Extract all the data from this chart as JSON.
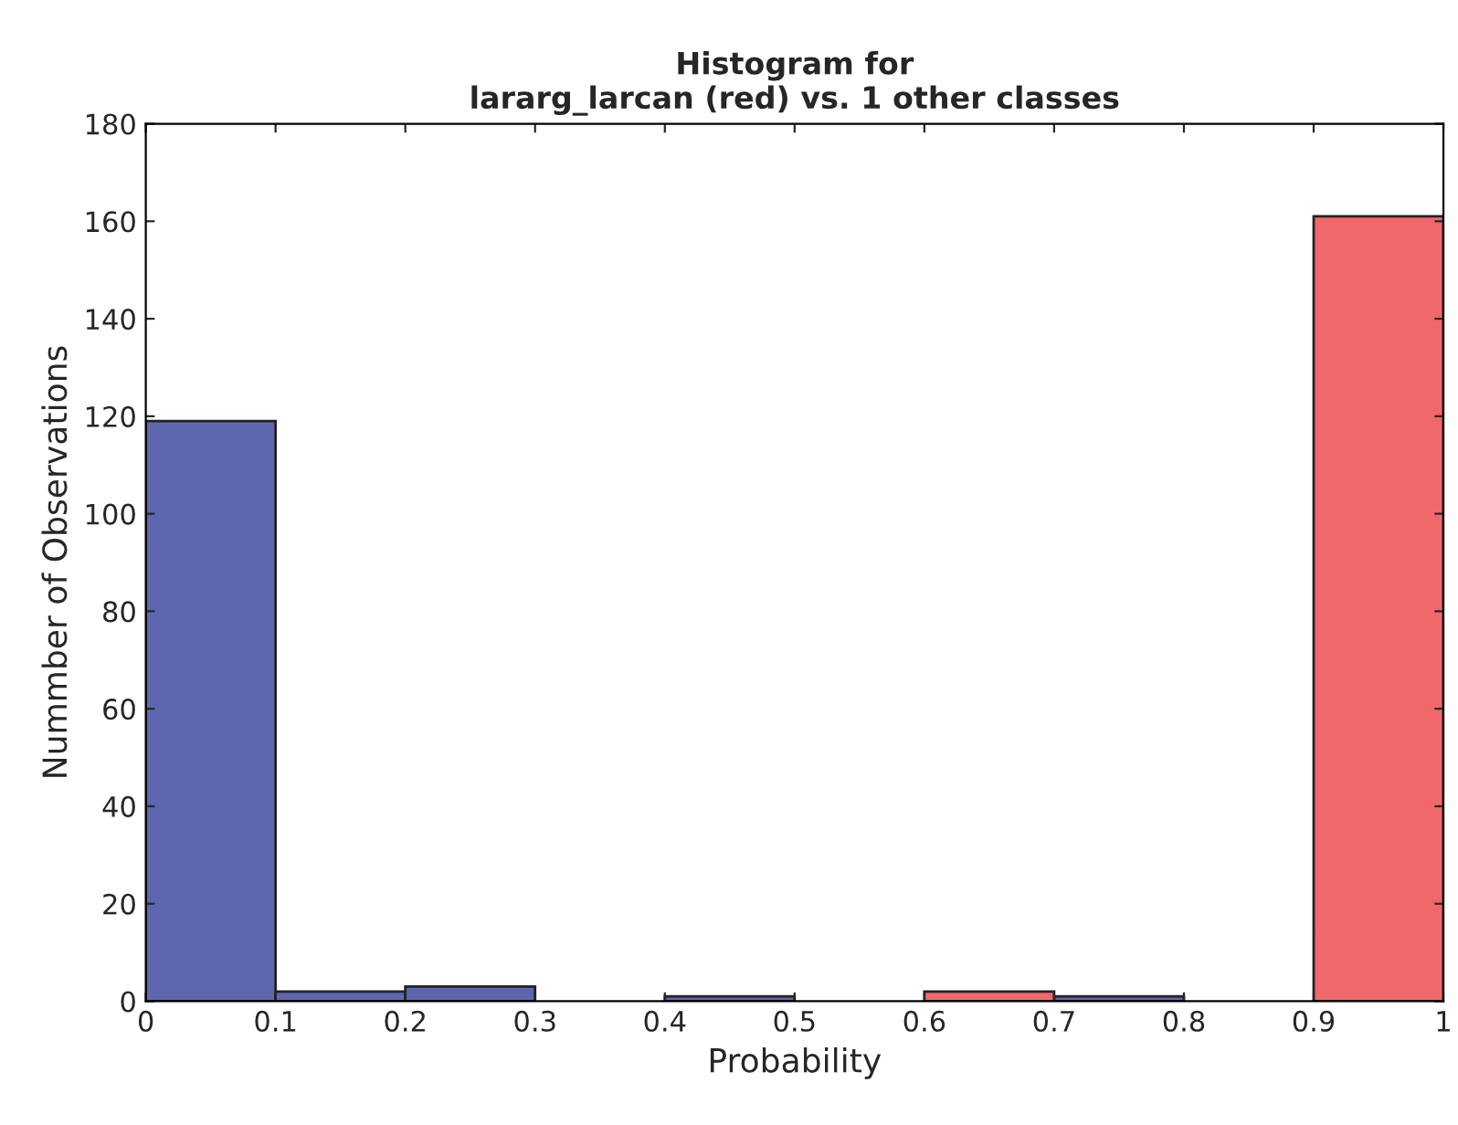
{
  "chart_data": {
    "type": "histogram",
    "title": "Histogram for\nlararg_larcan (red) vs. 1 other classes",
    "xlabel": "Probability",
    "ylabel": "Nummber of Observations",
    "bins": [
      0,
      0.1,
      0.2,
      0.3,
      0.4,
      0.5,
      0.6,
      0.7,
      0.8,
      0.9,
      1
    ],
    "series": [
      {
        "color": "#5f66b0",
        "values": [
          119,
          2,
          3,
          0,
          1,
          0,
          0,
          1,
          0,
          0
        ]
      },
      {
        "color": "#f0686a",
        "values": [
          0,
          0,
          0,
          0,
          0,
          0,
          2,
          0,
          0,
          161
        ]
      }
    ],
    "xlim": [
      0,
      1
    ],
    "xticks": [
      0,
      0.1,
      0.2,
      0.3,
      0.4,
      0.5,
      0.6,
      0.7,
      0.8,
      0.9,
      1
    ],
    "ylim": [
      0,
      180
    ],
    "yticks": [
      0,
      20,
      40,
      60,
      80,
      100,
      120,
      140,
      160,
      180
    ],
    "grid": false,
    "legend": false
  }
}
